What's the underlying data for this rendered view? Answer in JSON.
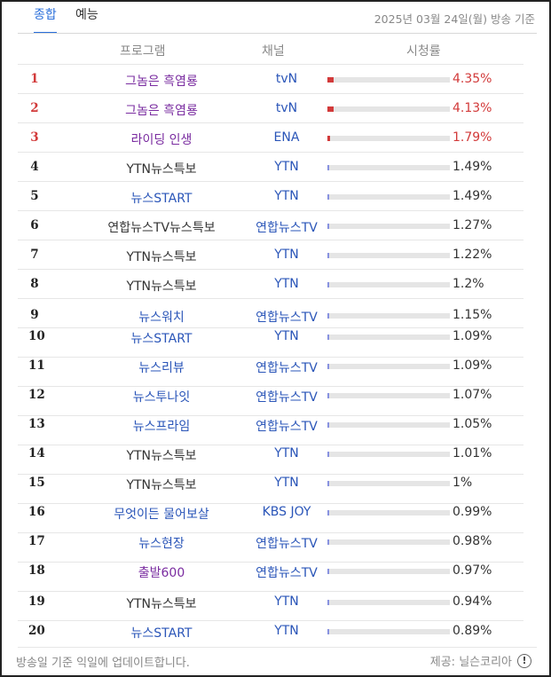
{
  "tabs": [
    {
      "label": "종합",
      "active": true
    },
    {
      "label": "예능",
      "active": false
    }
  ],
  "broadcast_date": "2025년 03월 24일(월) 방송 기준",
  "headers": {
    "program": "프로그램",
    "channel": "채널",
    "rating": "시청률"
  },
  "rows": [
    {
      "rank": "1",
      "program": "그놈은 흑염룡",
      "channel": "tvN",
      "rating": "4.35%",
      "value": 4.35,
      "color": "purple",
      "hot": true
    },
    {
      "rank": "2",
      "program": "그놈은 흑염룡",
      "channel": "tvN",
      "rating": "4.13%",
      "value": 4.13,
      "color": "purple",
      "hot": true
    },
    {
      "rank": "3",
      "program": "라이딩 인생",
      "channel": "ENA",
      "rating": "1.79%",
      "value": 1.79,
      "color": "purple",
      "hot": true
    },
    {
      "rank": "4",
      "program": "YTN뉴스특보",
      "channel": "YTN",
      "rating": "1.49%",
      "value": 1.49,
      "color": "black",
      "hot": false
    },
    {
      "rank": "5",
      "program": "뉴스START",
      "channel": "YTN",
      "rating": "1.49%",
      "value": 1.49,
      "color": "blue",
      "hot": false
    },
    {
      "rank": "6",
      "program": "연합뉴스TV뉴스특보",
      "channel": "연합뉴스TV",
      "rating": "1.27%",
      "value": 1.27,
      "color": "black",
      "hot": false
    },
    {
      "rank": "7",
      "program": "YTN뉴스특보",
      "channel": "YTN",
      "rating": "1.22%",
      "value": 1.22,
      "color": "black",
      "hot": false
    },
    {
      "rank": "8",
      "program": "YTN뉴스특보",
      "channel": "YTN",
      "rating": "1.2%",
      "value": 1.2,
      "color": "black",
      "hot": false
    },
    {
      "rank": "9",
      "program": "뉴스워치",
      "channel": "연합뉴스TV",
      "rating": "1.15%",
      "value": 1.15,
      "color": "blue",
      "hot": false
    },
    {
      "rank": "10",
      "program": "뉴스START",
      "channel": "YTN",
      "rating": "1.09%",
      "value": 1.09,
      "color": "blue",
      "hot": false
    },
    {
      "rank": "11",
      "program": "뉴스리뷰",
      "channel": "연합뉴스TV",
      "rating": "1.09%",
      "value": 1.09,
      "color": "blue",
      "hot": false
    },
    {
      "rank": "12",
      "program": "뉴스투나잇",
      "channel": "연합뉴스TV",
      "rating": "1.07%",
      "value": 1.07,
      "color": "blue",
      "hot": false
    },
    {
      "rank": "13",
      "program": "뉴스프라임",
      "channel": "연합뉴스TV",
      "rating": "1.05%",
      "value": 1.05,
      "color": "blue",
      "hot": false
    },
    {
      "rank": "14",
      "program": "YTN뉴스특보",
      "channel": "YTN",
      "rating": "1.01%",
      "value": 1.01,
      "color": "black",
      "hot": false
    },
    {
      "rank": "15",
      "program": "YTN뉴스특보",
      "channel": "YTN",
      "rating": "1%",
      "value": 1.0,
      "color": "black",
      "hot": false
    },
    {
      "rank": "16",
      "program": "무엇이든 물어보살",
      "channel": "KBS JOY",
      "rating": "0.99%",
      "value": 0.99,
      "color": "blue",
      "hot": false
    },
    {
      "rank": "17",
      "program": "뉴스현장",
      "channel": "연합뉴스TV",
      "rating": "0.98%",
      "value": 0.98,
      "color": "blue",
      "hot": false
    },
    {
      "rank": "18",
      "program": "출발600",
      "channel": "연합뉴스TV",
      "rating": "0.97%",
      "value": 0.97,
      "color": "purple",
      "hot": false
    },
    {
      "rank": "19",
      "program": "YTN뉴스특보",
      "channel": "YTN",
      "rating": "0.94%",
      "value": 0.94,
      "color": "black",
      "hot": false
    },
    {
      "rank": "20",
      "program": "뉴스START",
      "channel": "YTN",
      "rating": "0.89%",
      "value": 0.89,
      "color": "blue",
      "hot": false
    }
  ],
  "footer": {
    "note": "방송일 기준 익일에 업데이트합니다.",
    "provider": "제공: 닐슨코리아"
  },
  "colors": {
    "accent": "#2a6fdb",
    "hot": "#d23a3a",
    "purple": "#7a2ca0",
    "blue": "#2a55b8"
  }
}
